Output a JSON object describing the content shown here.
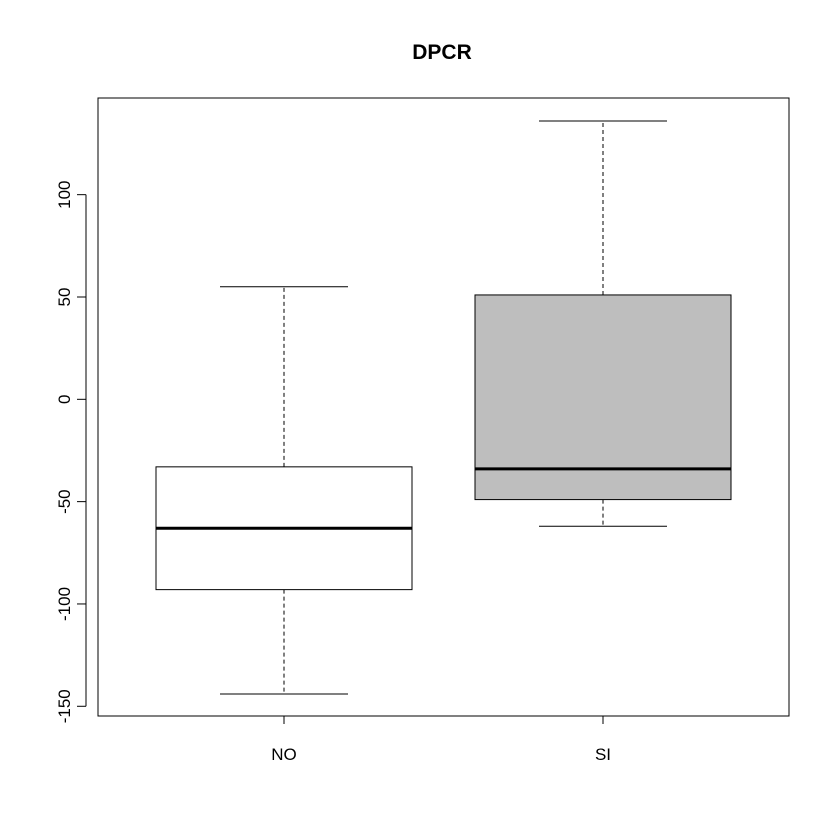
{
  "chart_data": {
    "type": "boxplot",
    "title": "DPCR",
    "xlabel": "",
    "ylabel": "",
    "categories": [
      "NO",
      "SI"
    ],
    "series": [
      {
        "category": "NO",
        "whisker_low": -144,
        "q1": -93,
        "median": -63,
        "q3": -33,
        "whisker_high": 55,
        "fill": "#ffffff"
      },
      {
        "category": "SI",
        "whisker_low": -62,
        "q1": -49,
        "median": -34,
        "q3": 51,
        "whisker_high": 136,
        "fill": "#bebebe"
      }
    ],
    "ylim": [
      -155,
      146
    ],
    "y_ticks": [
      -150,
      -100,
      -50,
      0,
      50,
      100
    ],
    "y_tick_labels": [
      "-150",
      "-100",
      "-50",
      "0",
      "50",
      "100"
    ],
    "grid": false,
    "legend": "none",
    "colors": {
      "line": "#000000",
      "background": "#ffffff"
    }
  }
}
